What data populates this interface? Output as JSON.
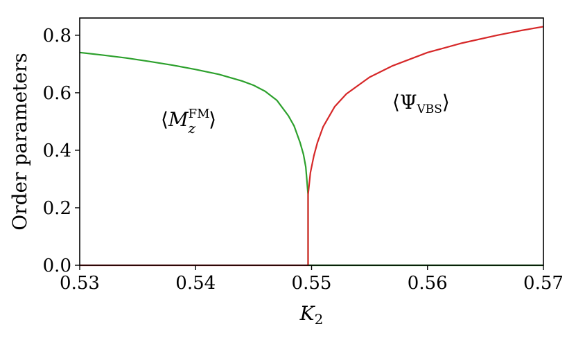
{
  "chart_data": {
    "type": "line",
    "xlabel": "K",
    "xlabel_sub": "2",
    "ylabel": "Order parameters",
    "xlim": [
      0.53,
      0.57
    ],
    "ylim": [
      0.0,
      0.86
    ],
    "xticks": [
      "0.53",
      "0.54",
      "0.55",
      "0.56",
      "0.57"
    ],
    "yticks": [
      "0.0",
      "0.2",
      "0.4",
      "0.6",
      "0.8"
    ],
    "grid": false,
    "legend": "none",
    "transition_point": 0.5497,
    "series": [
      {
        "color": "#2ca02c",
        "annotation": {
          "bracket_open": "⟨",
          "symbol": "M",
          "sub": "z",
          "sup": "FM",
          "bracket_close": "⟩"
        },
        "points": [
          [
            0.53,
            0.74
          ],
          [
            0.532,
            0.731
          ],
          [
            0.534,
            0.721
          ],
          [
            0.536,
            0.709
          ],
          [
            0.538,
            0.696
          ],
          [
            0.54,
            0.681
          ],
          [
            0.542,
            0.664
          ],
          [
            0.544,
            0.641
          ],
          [
            0.545,
            0.626
          ],
          [
            0.546,
            0.605
          ],
          [
            0.547,
            0.574
          ],
          [
            0.548,
            0.52
          ],
          [
            0.5485,
            0.484
          ],
          [
            0.549,
            0.428
          ],
          [
            0.5493,
            0.386
          ],
          [
            0.5495,
            0.342
          ],
          [
            0.5497,
            0.245
          ],
          [
            0.5497,
            0.0
          ],
          [
            0.55,
            0.0
          ],
          [
            0.56,
            0.0
          ],
          [
            0.57,
            0.0
          ]
        ]
      },
      {
        "color": "#d62728",
        "annotation": {
          "bracket_open": "⟨",
          "symbol": "Ψ",
          "sub": "VBS",
          "bracket_close": "⟩"
        },
        "points": [
          [
            0.53,
            0.0
          ],
          [
            0.54,
            0.0
          ],
          [
            0.5497,
            0.0
          ],
          [
            0.5497,
            0.245
          ],
          [
            0.5499,
            0.322
          ],
          [
            0.5502,
            0.381
          ],
          [
            0.5505,
            0.426
          ],
          [
            0.551,
            0.482
          ],
          [
            0.552,
            0.552
          ],
          [
            0.553,
            0.596
          ],
          [
            0.555,
            0.654
          ],
          [
            0.557,
            0.694
          ],
          [
            0.56,
            0.74
          ],
          [
            0.563,
            0.773
          ],
          [
            0.566,
            0.8
          ],
          [
            0.568,
            0.816
          ],
          [
            0.57,
            0.83
          ]
        ]
      }
    ]
  }
}
